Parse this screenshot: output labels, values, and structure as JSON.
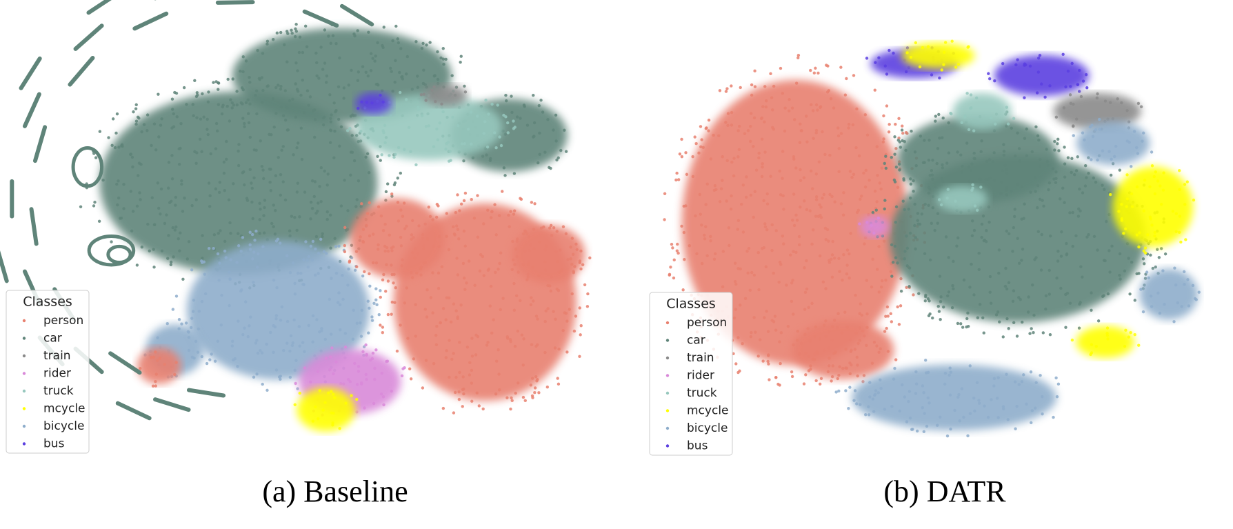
{
  "panels": [
    {
      "caption": "(a) Baseline",
      "legend": {
        "title": "Classes",
        "items": [
          {
            "name": "person",
            "color": "#e8806f"
          },
          {
            "name": "car",
            "color": "#5f8479"
          },
          {
            "name": "train",
            "color": "#8a8a8a"
          },
          {
            "name": "rider",
            "color": "#d98ad9"
          },
          {
            "name": "truck",
            "color": "#97c8be"
          },
          {
            "name": "mcycle",
            "color": "#ffff00"
          },
          {
            "name": "bicycle",
            "color": "#8eadcb"
          },
          {
            "name": "bus",
            "color": "#5b3fe0"
          }
        ]
      }
    },
    {
      "caption": "(b) DATR",
      "legend": {
        "title": "Classes",
        "items": [
          {
            "name": "person",
            "color": "#e8806f"
          },
          {
            "name": "car",
            "color": "#5f8479"
          },
          {
            "name": "train",
            "color": "#8a8a8a"
          },
          {
            "name": "rider",
            "color": "#d98ad9"
          },
          {
            "name": "truck",
            "color": "#97c8be"
          },
          {
            "name": "mcycle",
            "color": "#ffff00"
          },
          {
            "name": "bicycle",
            "color": "#8eadcb"
          },
          {
            "name": "bus",
            "color": "#5b3fe0"
          }
        ]
      }
    }
  ]
}
